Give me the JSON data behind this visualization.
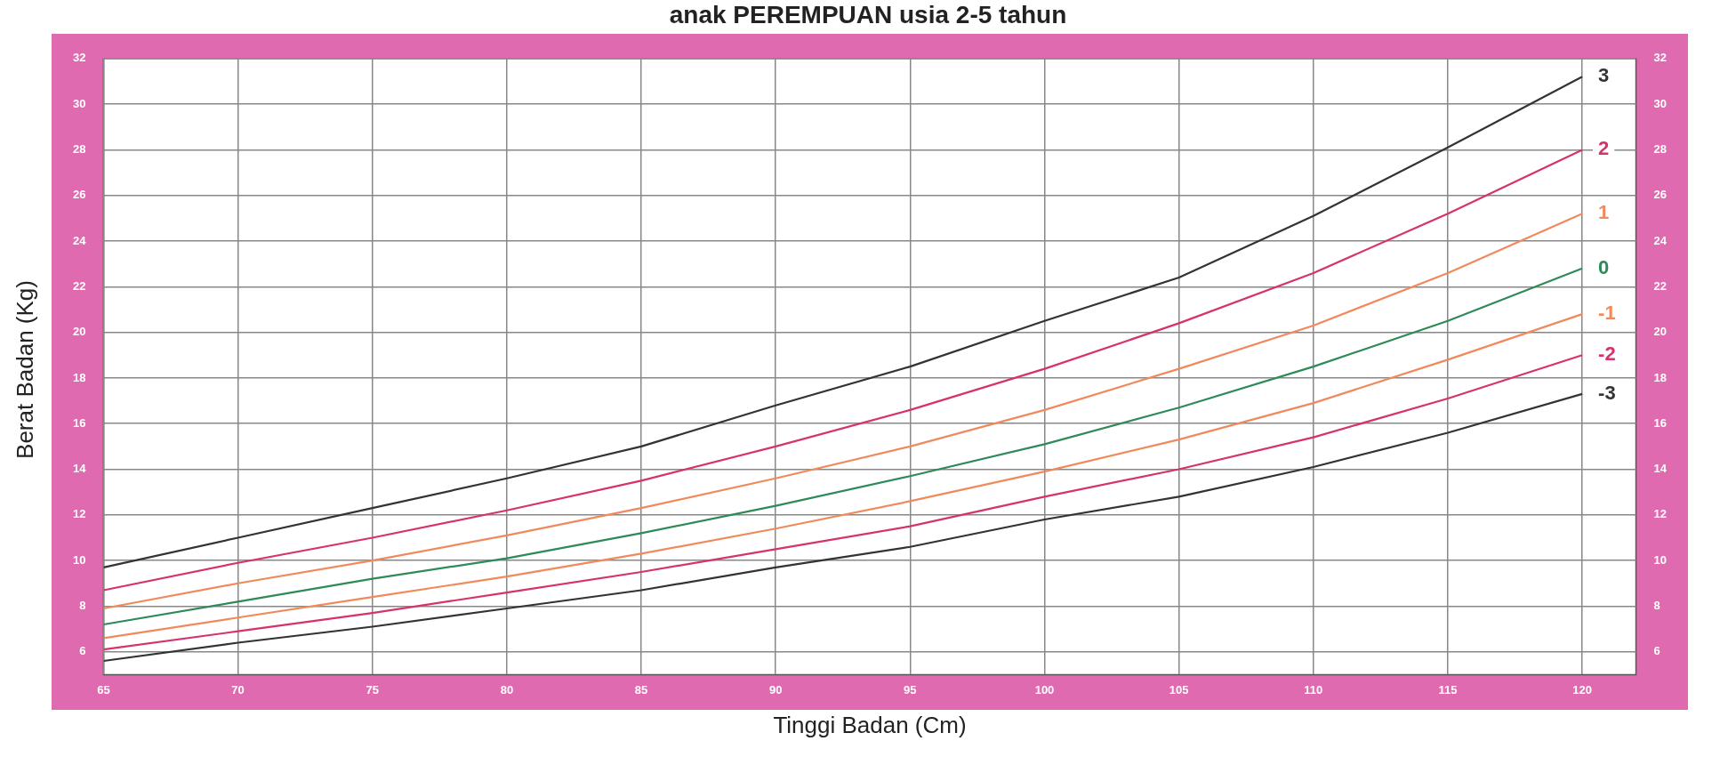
{
  "chart_data": {
    "type": "line",
    "title": "anak PEREMPUAN usia 2-5 tahun",
    "xlabel": "Tinggi Badan (Cm)",
    "ylabel": "Berat Badan (Kg)",
    "x": [
      65,
      70,
      75,
      80,
      85,
      90,
      95,
      100,
      105,
      110,
      115,
      120
    ],
    "series": [
      {
        "name": "3",
        "color": "#333333",
        "values": [
          9.7,
          11.0,
          12.3,
          13.6,
          15.0,
          16.8,
          18.5,
          20.5,
          22.4,
          25.1,
          28.1,
          31.2
        ]
      },
      {
        "name": "2",
        "color": "#d6336c",
        "values": [
          8.7,
          9.9,
          11.0,
          12.2,
          13.5,
          15.0,
          16.6,
          18.4,
          20.4,
          22.6,
          25.2,
          28.0
        ]
      },
      {
        "name": "1",
        "color": "#f08a5d",
        "values": [
          7.9,
          9.0,
          10.0,
          11.1,
          12.3,
          13.6,
          15.0,
          16.6,
          18.4,
          20.3,
          22.6,
          25.2
        ]
      },
      {
        "name": "0",
        "color": "#2e8b57",
        "values": [
          7.2,
          8.2,
          9.2,
          10.1,
          11.2,
          12.4,
          13.7,
          15.1,
          16.7,
          18.5,
          20.5,
          22.8
        ]
      },
      {
        "name": "-1",
        "color": "#f08a5d",
        "values": [
          6.6,
          7.5,
          8.4,
          9.3,
          10.3,
          11.4,
          12.6,
          13.9,
          15.3,
          16.9,
          18.8,
          20.8
        ]
      },
      {
        "name": "-2",
        "color": "#d6336c",
        "values": [
          6.1,
          6.9,
          7.7,
          8.6,
          9.5,
          10.5,
          11.5,
          12.8,
          14.0,
          15.4,
          17.1,
          19.0
        ]
      },
      {
        "name": "-3",
        "color": "#333333",
        "values": [
          5.6,
          6.4,
          7.1,
          7.9,
          8.7,
          9.7,
          10.6,
          11.8,
          12.8,
          14.1,
          15.6,
          17.3
        ]
      }
    ],
    "xlim": [
      65,
      122
    ],
    "xticks": [
      65,
      70,
      75,
      80,
      85,
      90,
      95,
      100,
      105,
      110,
      115,
      120
    ],
    "ylim": [
      5,
      32
    ],
    "yticks": [
      6,
      8,
      10,
      12,
      14,
      16,
      18,
      20,
      22,
      24,
      26,
      28,
      30,
      32
    ],
    "y2lim": [
      5,
      32
    ],
    "y2ticks": [
      6,
      8,
      10,
      12,
      14,
      16,
      18,
      20,
      22,
      24,
      26,
      28,
      30,
      32
    ],
    "grid": true,
    "legend": false,
    "marker": "none",
    "line_style": "solid"
  }
}
